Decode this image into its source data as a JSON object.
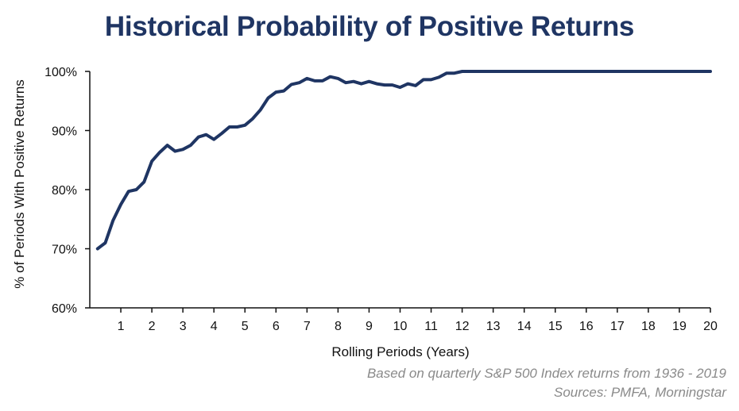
{
  "chart_data": {
    "type": "line",
    "title": "Historical Probability of Positive Returns",
    "xlabel": "Rolling Periods (Years)",
    "ylabel": "% of Periods With Positive Returns",
    "xlim": [
      0,
      20
    ],
    "ylim": [
      60,
      100
    ],
    "x_ticks": [
      "1",
      "2",
      "3",
      "4",
      "5",
      "6",
      "7",
      "8",
      "9",
      "10",
      "11",
      "12",
      "13",
      "14",
      "15",
      "16",
      "17",
      "18",
      "19",
      "20"
    ],
    "y_ticks": [
      {
        "value": 60,
        "label": "60%"
      },
      {
        "value": 70,
        "label": "70%"
      },
      {
        "value": 80,
        "label": "80%"
      },
      {
        "value": 90,
        "label": "90%"
      },
      {
        "value": 100,
        "label": "100%"
      }
    ],
    "grid": false,
    "line_color": "#1f3563",
    "series": [
      {
        "x": [
          0.25,
          0.5,
          0.75,
          1,
          1.25,
          1.5,
          1.75,
          2,
          2.25,
          2.5,
          2.75,
          3,
          3.25,
          3.5,
          3.75,
          4,
          4.25,
          4.5,
          4.75,
          5,
          5.25,
          5.5,
          5.75,
          6,
          6.25,
          6.5,
          6.75,
          7,
          7.25,
          7.5,
          7.75,
          8,
          8.25,
          8.5,
          8.75,
          9,
          9.25,
          9.5,
          9.75,
          10,
          10.25,
          10.5,
          10.75,
          11,
          11.25,
          11.5,
          11.75,
          12,
          12.5,
          13,
          14,
          15,
          16,
          17,
          18,
          19,
          20
        ],
        "values": [
          70,
          71,
          74.8,
          77.5,
          79.7,
          80,
          81.3,
          84.8,
          86.3,
          87.5,
          86.5,
          86.8,
          87.5,
          88.9,
          89.3,
          88.5,
          89.5,
          90.6,
          90.6,
          90.9,
          92,
          93.5,
          95.5,
          96.5,
          96.7,
          97.8,
          98.1,
          98.8,
          98.4,
          98.4,
          99.1,
          98.8,
          98.1,
          98.3,
          97.9,
          98.3,
          97.9,
          97.7,
          97.7,
          97.3,
          97.9,
          97.6,
          98.6,
          98.6,
          99.0,
          99.7,
          99.7,
          100,
          100,
          100,
          100,
          100,
          100,
          100,
          100,
          100,
          100
        ]
      }
    ],
    "notes": [
      "Based on quarterly S&P 500 Index returns from 1936 - 2019",
      "Sources: PMFA, Morningstar"
    ]
  }
}
